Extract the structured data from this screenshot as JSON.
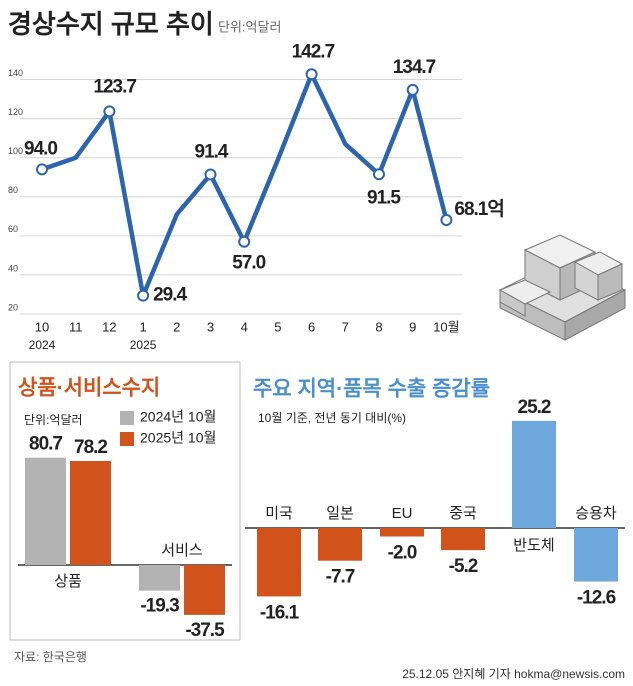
{
  "chart_data": [
    {
      "type": "line",
      "title": "경상수지 규모 추이",
      "subtitle": "단위:억달러",
      "categories": [
        "10",
        "11",
        "12",
        "1",
        "2",
        "3",
        "4",
        "5",
        "6",
        "7",
        "8",
        "9",
        "10월"
      ],
      "year_labels": [
        "2024",
        null,
        null,
        "2025",
        null,
        null,
        null,
        null,
        null,
        null,
        null,
        null,
        null
      ],
      "values": [
        94.0,
        100,
        123.7,
        29.4,
        71,
        91.4,
        57.0,
        99,
        142.7,
        107,
        91.5,
        134.7,
        68.1
      ],
      "value_labels": [
        "94.0",
        null,
        "123.7",
        "29.4",
        null,
        "91.4",
        "57.0",
        null,
        "142.7",
        null,
        "91.5",
        "134.7",
        "68.1억"
      ],
      "color": "#2c64ad",
      "ylim": [
        20,
        150
      ],
      "yticks": [
        20,
        40,
        60,
        80,
        100,
        120,
        140
      ],
      "grid": true
    },
    {
      "type": "bar",
      "title": "상품·서비스수지",
      "subtitle": "단위:억달러",
      "categories": [
        "상품",
        "서비스"
      ],
      "series": [
        {
          "name": "2024년 10월",
          "color": "#b3b3b3",
          "values": [
            80.7,
            -19.3
          ]
        },
        {
          "name": "2025년 10월",
          "color": "#d2521c",
          "values": [
            78.2,
            -37.5
          ]
        }
      ],
      "ylim": [
        -40,
        90
      ]
    },
    {
      "type": "bar",
      "title": "주요 지역·품목 수출 증감률",
      "subtitle": "10월 기준, 전년 동기 대비(%)",
      "categories": [
        "미국",
        "일본",
        "EU",
        "중국",
        "반도체",
        "승용차"
      ],
      "values": [
        -16.1,
        -7.7,
        -2.0,
        -5.2,
        25.2,
        -12.6
      ],
      "value_labels": [
        "-16.1",
        "-7.7",
        "-2.0",
        "-5.2",
        "25.2",
        "-12.6"
      ],
      "colors": [
        "#d2521c",
        "#d2521c",
        "#d2521c",
        "#d2521c",
        "#6fa8dc",
        "#6fa8dc"
      ],
      "ylim": [
        -20,
        30
      ]
    }
  ],
  "source": "자료: 한국은행",
  "credit": "25.12.05 안지혜 기자 hokma@newsis.com"
}
